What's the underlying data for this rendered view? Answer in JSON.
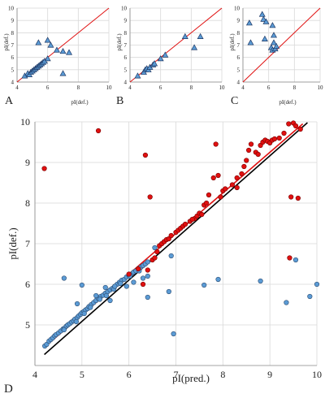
{
  "colors": {
    "triangle_fill": "#5b9bd5",
    "triangle_stroke": "#1f3864",
    "blue_point": "#5b9bd5",
    "blue_point_stroke": "#2e4e73",
    "red_point": "#e01010",
    "red_point_stroke": "#7a0000",
    "red_line": "#e01010",
    "black_line": "#000000",
    "grid": "#d9d9d9"
  },
  "chart_data": [
    {
      "panel": "A",
      "type": "scatter",
      "marker": "triangle",
      "xlabel": "pI(def.)",
      "ylabel": "pI(def.)",
      "xlim": [
        4,
        10
      ],
      "ylim": [
        4,
        10
      ],
      "xticks": [
        "4",
        "6",
        "8",
        "10"
      ],
      "yticks": [
        "4",
        "5",
        "6",
        "7",
        "8",
        "9",
        "10"
      ],
      "grid": true,
      "reference_line": "y = x",
      "points": [
        [
          4.5,
          4.5
        ],
        [
          4.7,
          4.7
        ],
        [
          4.8,
          4.6
        ],
        [
          4.9,
          4.8
        ],
        [
          5.0,
          4.9
        ],
        [
          5.1,
          5.0
        ],
        [
          5.2,
          5.1
        ],
        [
          5.3,
          5.2
        ],
        [
          5.4,
          5.3
        ],
        [
          5.5,
          5.4
        ],
        [
          5.6,
          5.5
        ],
        [
          5.7,
          5.6
        ],
        [
          5.8,
          5.7
        ],
        [
          6.0,
          5.9
        ],
        [
          5.4,
          7.2
        ],
        [
          6.0,
          7.4
        ],
        [
          6.2,
          7.0
        ],
        [
          6.6,
          6.6
        ],
        [
          7.0,
          6.5
        ],
        [
          7.4,
          6.4
        ],
        [
          7.0,
          4.7
        ]
      ]
    },
    {
      "panel": "B",
      "type": "scatter",
      "marker": "triangle",
      "xlabel": "",
      "ylabel": "pI(def.)",
      "xlim": [
        4,
        10
      ],
      "ylim": [
        4,
        10
      ],
      "xticks": [
        "4",
        "6",
        "8",
        "10"
      ],
      "yticks": [
        "4",
        "5",
        "6",
        "7",
        "8",
        "9",
        "10"
      ],
      "grid": true,
      "reference_line": "y = x",
      "points": [
        [
          4.5,
          4.5
        ],
        [
          4.9,
          4.8
        ],
        [
          5.0,
          5.0
        ],
        [
          5.1,
          5.1
        ],
        [
          5.2,
          5.0
        ],
        [
          5.3,
          5.2
        ],
        [
          5.5,
          5.4
        ],
        [
          5.6,
          5.5
        ],
        [
          6.0,
          5.9
        ],
        [
          6.3,
          6.2
        ],
        [
          7.6,
          7.7
        ],
        [
          8.6,
          7.7
        ],
        [
          8.2,
          6.8
        ]
      ]
    },
    {
      "panel": "C",
      "type": "scatter",
      "marker": "triangle",
      "xlabel": "pI(def.)",
      "ylabel": "pI(def.)",
      "xlim": [
        4,
        10
      ],
      "ylim": [
        4,
        10
      ],
      "xticks": [
        "4",
        "6",
        "8",
        "10"
      ],
      "yticks": [
        "4",
        "5",
        "6",
        "7",
        "8",
        "9",
        "10"
      ],
      "grid": true,
      "reference_line": "y = x",
      "points": [
        [
          4.5,
          8.8
        ],
        [
          4.6,
          7.2
        ],
        [
          5.5,
          9.5
        ],
        [
          5.6,
          9.1
        ],
        [
          5.8,
          8.9
        ],
        [
          5.7,
          7.5
        ],
        [
          6.4,
          7.8
        ],
        [
          6.4,
          7.2
        ],
        [
          6.2,
          6.8
        ],
        [
          6.3,
          6.6
        ],
        [
          6.5,
          6.7
        ],
        [
          6.6,
          6.9
        ],
        [
          6.3,
          8.6
        ]
      ]
    },
    {
      "panel": "D",
      "type": "scatter",
      "xlabel": "pI(pred.)",
      "ylabel": "pI(def.)",
      "xlim": [
        4,
        10
      ],
      "ylim": [
        4,
        10
      ],
      "xticks": [
        "4",
        "5",
        "6",
        "7",
        "8",
        "9",
        "10"
      ],
      "yticks": [
        "5",
        "6",
        "7",
        "8",
        "9",
        "10"
      ],
      "grid": true,
      "series": [
        {
          "color": "blue",
          "points": [
            [
              4.21,
              4.48
            ],
            [
              4.25,
              4.52
            ],
            [
              4.3,
              4.6
            ],
            [
              4.34,
              4.64
            ],
            [
              4.38,
              4.68
            ],
            [
              4.42,
              4.73
            ],
            [
              4.45,
              4.76
            ],
            [
              4.5,
              4.8
            ],
            [
              4.55,
              4.85
            ],
            [
              4.6,
              4.9
            ],
            [
              4.63,
              4.92
            ],
            [
              4.67,
              4.97
            ],
            [
              4.7,
              5.0
            ],
            [
              4.74,
              5.03
            ],
            [
              4.78,
              5.07
            ],
            [
              4.82,
              5.1
            ],
            [
              4.85,
              5.14
            ],
            [
              4.9,
              5.18
            ],
            [
              4.93,
              5.22
            ],
            [
              4.97,
              5.26
            ],
            [
              5.0,
              5.3
            ],
            [
              5.04,
              5.33
            ],
            [
              5.08,
              5.37
            ],
            [
              5.12,
              5.4
            ],
            [
              5.15,
              5.45
            ],
            [
              5.2,
              5.5
            ],
            [
              5.25,
              5.55
            ],
            [
              5.3,
              5.6
            ],
            [
              5.35,
              5.65
            ],
            [
              5.4,
              5.7
            ],
            [
              5.45,
              5.73
            ],
            [
              5.5,
              5.78
            ],
            [
              5.55,
              5.82
            ],
            [
              5.6,
              5.86
            ],
            [
              5.65,
              5.9
            ],
            [
              5.7,
              5.95
            ],
            [
              5.75,
              6.0
            ],
            [
              5.8,
              6.05
            ],
            [
              5.85,
              6.1
            ],
            [
              5.9,
              6.12
            ],
            [
              5.95,
              6.18
            ],
            [
              6.0,
              6.22
            ],
            [
              6.05,
              6.25
            ],
            [
              6.1,
              6.3
            ],
            [
              6.15,
              6.33
            ],
            [
              6.2,
              6.38
            ],
            [
              6.25,
              6.42
            ],
            [
              6.3,
              6.46
            ],
            [
              6.35,
              6.5
            ],
            [
              6.4,
              6.55
            ],
            [
              4.62,
              4.88
            ],
            [
              4.88,
              5.08
            ],
            [
              5.05,
              5.28
            ],
            [
              5.18,
              5.43
            ],
            [
              5.38,
              5.63
            ],
            [
              5.52,
              5.72
            ],
            [
              5.68,
              5.88
            ],
            [
              5.82,
              6.02
            ],
            [
              6.02,
              6.2
            ],
            [
              6.22,
              6.33
            ],
            [
              4.9,
              5.52
            ],
            [
              5.3,
              5.72
            ],
            [
              5.0,
              5.98
            ],
            [
              5.5,
              5.92
            ],
            [
              5.7,
              5.95
            ],
            [
              4.62,
              6.15
            ],
            [
              5.95,
              5.95
            ],
            [
              6.1,
              6.05
            ],
            [
              6.3,
              6.15
            ],
            [
              6.4,
              6.2
            ],
            [
              6.4,
              5.68
            ],
            [
              6.85,
              5.82
            ],
            [
              6.9,
              6.7
            ],
            [
              6.95,
              4.78
            ],
            [
              7.6,
              5.98
            ],
            [
              7.9,
              6.12
            ],
            [
              8.8,
              6.08
            ],
            [
              9.35,
              5.55
            ],
            [
              9.55,
              6.6
            ],
            [
              9.85,
              5.7
            ],
            [
              10.0,
              6.0
            ],
            [
              5.6,
              5.6
            ],
            [
              6.55,
              6.9
            ]
          ]
        },
        {
          "color": "red",
          "points": [
            [
              4.2,
              8.85
            ],
            [
              5.35,
              9.78
            ],
            [
              6.35,
              9.18
            ],
            [
              6.45,
              8.15
            ],
            [
              6.4,
              6.35
            ],
            [
              6.3,
              6.0
            ],
            [
              6.5,
              6.6
            ],
            [
              6.55,
              6.65
            ],
            [
              6.6,
              6.8
            ],
            [
              6.65,
              6.95
            ],
            [
              6.7,
              7.0
            ],
            [
              6.75,
              7.05
            ],
            [
              6.8,
              7.1
            ],
            [
              6.85,
              7.12
            ],
            [
              6.9,
              7.2
            ],
            [
              7.0,
              7.28
            ],
            [
              7.05,
              7.33
            ],
            [
              7.1,
              7.38
            ],
            [
              7.15,
              7.43
            ],
            [
              7.2,
              7.48
            ],
            [
              7.3,
              7.55
            ],
            [
              7.4,
              7.62
            ],
            [
              7.45,
              7.68
            ],
            [
              7.5,
              7.75
            ],
            [
              7.55,
              7.72
            ],
            [
              7.6,
              7.95
            ],
            [
              7.65,
              8.0
            ],
            [
              7.7,
              8.2
            ],
            [
              7.8,
              8.62
            ],
            [
              7.9,
              8.68
            ],
            [
              8.0,
              8.3
            ],
            [
              7.85,
              9.45
            ],
            [
              7.95,
              8.15
            ],
            [
              8.2,
              8.45
            ],
            [
              8.3,
              8.62
            ],
            [
              8.4,
              8.72
            ],
            [
              8.45,
              8.9
            ],
            [
              8.5,
              9.05
            ],
            [
              8.55,
              9.3
            ],
            [
              8.6,
              9.45
            ],
            [
              8.7,
              9.25
            ],
            [
              8.75,
              9.2
            ],
            [
              8.8,
              9.42
            ],
            [
              8.85,
              9.5
            ],
            [
              8.9,
              9.55
            ],
            [
              8.95,
              9.52
            ],
            [
              9.0,
              9.48
            ],
            [
              9.05,
              9.55
            ],
            [
              9.1,
              9.58
            ],
            [
              9.2,
              9.6
            ],
            [
              9.3,
              9.72
            ],
            [
              9.4,
              9.95
            ],
            [
              9.5,
              9.97
            ],
            [
              9.55,
              9.9
            ],
            [
              9.65,
              9.82
            ],
            [
              9.42,
              6.65
            ],
            [
              9.45,
              8.15
            ],
            [
              9.6,
              8.12
            ],
            [
              6.0,
              6.25
            ],
            [
              6.2,
              6.38
            ],
            [
              8.3,
              8.38
            ],
            [
              7.35,
              7.6
            ],
            [
              8.05,
              8.35
            ]
          ]
        }
      ],
      "lines": [
        {
          "color": "red",
          "from": [
            4.2,
            4.45
          ],
          "to": [
            9.7,
            9.95
          ]
        },
        {
          "color": "black",
          "from": [
            4.2,
            4.27
          ],
          "to": [
            9.8,
            9.98
          ]
        }
      ]
    }
  ],
  "labels": {
    "panel_a": "A",
    "panel_b": "B",
    "panel_c": "C",
    "panel_d": "D"
  }
}
